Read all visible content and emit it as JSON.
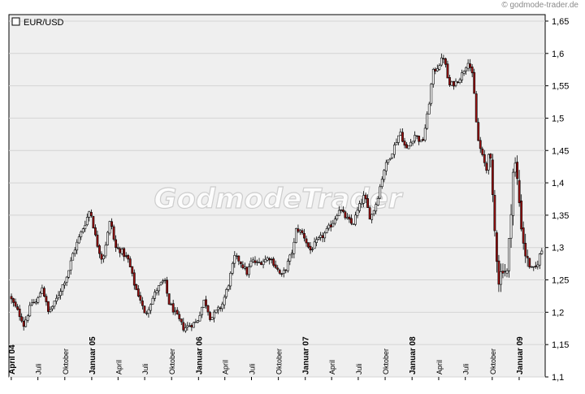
{
  "source": "© godmode-trader.de",
  "watermark": "GodmodeTrader",
  "chart_data": {
    "type": "candlestick",
    "legend": "EUR/USD",
    "ylim": [
      1.1,
      1.66
    ],
    "yticks": [
      {
        "value": 1.1,
        "label": "1,1"
      },
      {
        "value": 1.15,
        "label": "1,15"
      },
      {
        "value": 1.2,
        "label": "1,2"
      },
      {
        "value": 1.25,
        "label": "1,25"
      },
      {
        "value": 1.3,
        "label": "1,3"
      },
      {
        "value": 1.35,
        "label": "1,35"
      },
      {
        "value": 1.4,
        "label": "1,4"
      },
      {
        "value": 1.45,
        "label": "1,45"
      },
      {
        "value": 1.5,
        "label": "1,5"
      },
      {
        "value": 1.55,
        "label": "1,55"
      },
      {
        "value": 1.6,
        "label": "1,6"
      },
      {
        "value": 1.65,
        "label": "1,65"
      }
    ],
    "xrange": [
      "2004-03-24",
      "2009-03-31"
    ],
    "xticks": [
      {
        "date": "2004-04-01",
        "label": "April 04",
        "bold": true
      },
      {
        "date": "2004-07-01",
        "label": "Juli",
        "bold": false
      },
      {
        "date": "2004-10-01",
        "label": "Oktober",
        "bold": false
      },
      {
        "date": "2005-01-01",
        "label": "Januar 05",
        "bold": true
      },
      {
        "date": "2005-04-01",
        "label": "April",
        "bold": false
      },
      {
        "date": "2005-07-01",
        "label": "Juli",
        "bold": false
      },
      {
        "date": "2005-10-01",
        "label": "Oktober",
        "bold": false
      },
      {
        "date": "2006-01-01",
        "label": "Januar 06",
        "bold": true
      },
      {
        "date": "2006-04-01",
        "label": "April",
        "bold": false
      },
      {
        "date": "2006-07-01",
        "label": "Juli",
        "bold": false
      },
      {
        "date": "2006-10-01",
        "label": "Oktober",
        "bold": false
      },
      {
        "date": "2007-01-01",
        "label": "Januar 07",
        "bold": true
      },
      {
        "date": "2007-04-01",
        "label": "April",
        "bold": false
      },
      {
        "date": "2007-07-01",
        "label": "Juli",
        "bold": false
      },
      {
        "date": "2007-10-01",
        "label": "Oktober",
        "bold": false
      },
      {
        "date": "2008-01-01",
        "label": "Januar 08",
        "bold": true
      },
      {
        "date": "2008-04-01",
        "label": "April",
        "bold": false
      },
      {
        "date": "2008-07-01",
        "label": "Juli",
        "bold": false
      },
      {
        "date": "2008-10-01",
        "label": "Oktober",
        "bold": false
      },
      {
        "date": "2009-01-01",
        "label": "Januar 09",
        "bold": true
      }
    ],
    "grid": true,
    "legend_position": "top-left",
    "price_path": [
      [
        "2004-03-29",
        1.225
      ],
      [
        "2004-05-10",
        1.19
      ],
      [
        "2004-05-17",
        1.18
      ],
      [
        "2004-06-14",
        1.215
      ],
      [
        "2004-07-01",
        1.215
      ],
      [
        "2004-07-19",
        1.24
      ],
      [
        "2004-08-09",
        1.2
      ],
      [
        "2004-09-01",
        1.215
      ],
      [
        "2004-09-20",
        1.235
      ],
      [
        "2004-10-15",
        1.26
      ],
      [
        "2004-11-01",
        1.29
      ],
      [
        "2004-11-22",
        1.315
      ],
      [
        "2004-12-15",
        1.34
      ],
      [
        "2004-12-30",
        1.36
      ],
      [
        "2005-01-20",
        1.31
      ],
      [
        "2005-02-10",
        1.28
      ],
      [
        "2005-03-10",
        1.345
      ],
      [
        "2005-03-25",
        1.3
      ],
      [
        "2005-04-15",
        1.295
      ],
      [
        "2005-05-10",
        1.28
      ],
      [
        "2005-06-01",
        1.24
      ],
      [
        "2005-06-20",
        1.22
      ],
      [
        "2005-07-05",
        1.195
      ],
      [
        "2005-07-20",
        1.21
      ],
      [
        "2005-08-15",
        1.235
      ],
      [
        "2005-09-10",
        1.25
      ],
      [
        "2005-09-25",
        1.215
      ],
      [
        "2005-10-15",
        1.2
      ],
      [
        "2005-11-15",
        1.175
      ],
      [
        "2005-12-05",
        1.18
      ],
      [
        "2005-12-30",
        1.185
      ],
      [
        "2006-01-25",
        1.22
      ],
      [
        "2006-02-15",
        1.19
      ],
      [
        "2006-03-05",
        1.2
      ],
      [
        "2006-03-25",
        1.21
      ],
      [
        "2006-04-15",
        1.24
      ],
      [
        "2006-05-08",
        1.285
      ],
      [
        "2006-05-25",
        1.28
      ],
      [
        "2006-06-20",
        1.26
      ],
      [
        "2006-07-05",
        1.28
      ],
      [
        "2006-07-25",
        1.275
      ],
      [
        "2006-08-15",
        1.28
      ],
      [
        "2006-09-05",
        1.285
      ],
      [
        "2006-09-20",
        1.275
      ],
      [
        "2006-10-15",
        1.255
      ],
      [
        "2006-11-01",
        1.27
      ],
      [
        "2006-11-25",
        1.3
      ],
      [
        "2006-12-05",
        1.33
      ],
      [
        "2006-12-29",
        1.32
      ],
      [
        "2007-01-20",
        1.295
      ],
      [
        "2007-02-15",
        1.31
      ],
      [
        "2007-03-10",
        1.32
      ],
      [
        "2007-04-10",
        1.34
      ],
      [
        "2007-04-30",
        1.36
      ],
      [
        "2007-05-25",
        1.345
      ],
      [
        "2007-06-15",
        1.335
      ],
      [
        "2007-07-05",
        1.36
      ],
      [
        "2007-07-25",
        1.38
      ],
      [
        "2007-08-15",
        1.345
      ],
      [
        "2007-09-05",
        1.37
      ],
      [
        "2007-09-30",
        1.42
      ],
      [
        "2007-10-30",
        1.45
      ],
      [
        "2007-11-25",
        1.48
      ],
      [
        "2007-12-15",
        1.45
      ],
      [
        "2008-01-15",
        1.475
      ],
      [
        "2008-02-08",
        1.46
      ],
      [
        "2008-02-28",
        1.51
      ],
      [
        "2008-03-15",
        1.57
      ],
      [
        "2008-04-01",
        1.58
      ],
      [
        "2008-04-22",
        1.595
      ],
      [
        "2008-05-10",
        1.55
      ],
      [
        "2008-06-01",
        1.555
      ],
      [
        "2008-06-20",
        1.565
      ],
      [
        "2008-07-15",
        1.59
      ],
      [
        "2008-07-31",
        1.56
      ],
      [
        "2008-08-15",
        1.47
      ],
      [
        "2008-09-01",
        1.44
      ],
      [
        "2008-09-15",
        1.42
      ],
      [
        "2008-09-25",
        1.46
      ],
      [
        "2008-10-10",
        1.34
      ],
      [
        "2008-10-27",
        1.25
      ],
      [
        "2008-11-10",
        1.27
      ],
      [
        "2008-11-25",
        1.26
      ],
      [
        "2008-12-18",
        1.44
      ],
      [
        "2008-12-30",
        1.4
      ],
      [
        "2009-01-15",
        1.32
      ],
      [
        "2009-01-30",
        1.28
      ],
      [
        "2009-02-18",
        1.265
      ],
      [
        "2009-03-05",
        1.27
      ],
      [
        "2009-03-20",
        1.295
      ]
    ]
  }
}
